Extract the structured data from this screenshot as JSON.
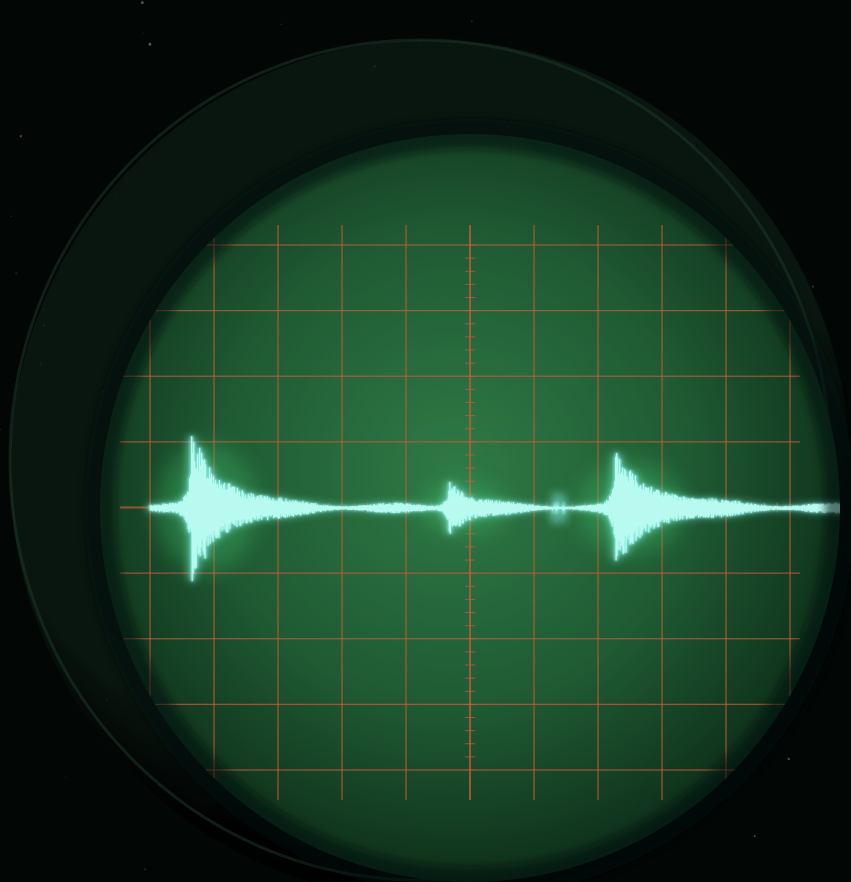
{
  "scene": {
    "subject": "oscilloscope-screen",
    "colors": {
      "background": "#020604",
      "bezel": "#0b1a12",
      "phosphor_center": "#2f7a45",
      "phosphor_mid": "#1f5a33",
      "phosphor_edge": "#0c2a17",
      "graticule": "#c85a3a",
      "trace": "#7ee6d8",
      "trace_core": "#c8fff6",
      "burst_glow": "#3fbf6a"
    },
    "graticule": {
      "vertical_divisions": 10,
      "horizontal_divisions": 8
    },
    "trace": {
      "baseline_level": 0.0,
      "noise_amplitude": 0.04,
      "bursts": [
        {
          "position": 0.06,
          "amplitude": 0.55,
          "decay": 0.05
        },
        {
          "position": 0.43,
          "amplitude": 0.22,
          "decay": 0.03
        },
        {
          "position": 0.67,
          "amplitude": 0.4,
          "decay": 0.06
        }
      ]
    }
  }
}
